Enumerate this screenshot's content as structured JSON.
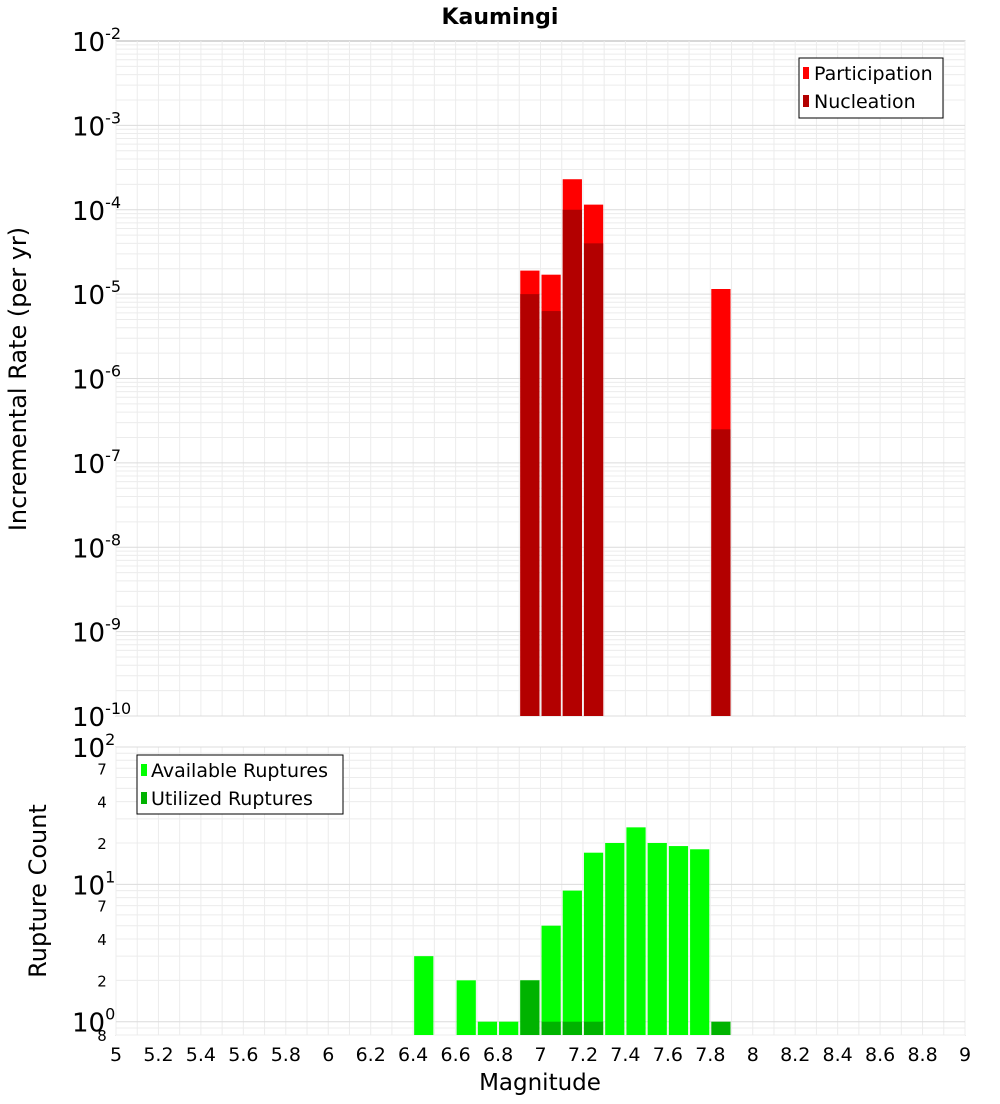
{
  "chart_data": [
    {
      "type": "bar",
      "title": "Kaumingi",
      "ylabel": "Incremental Rate (per yr)",
      "yscale": "log",
      "ylim": [
        1e-10,
        0.01
      ],
      "xlim": [
        5,
        9
      ],
      "bin_width": 0.1,
      "grid": true,
      "legend_position": "top-right",
      "series": [
        {
          "name": "Participation",
          "color": "#ff0000",
          "x": [
            6.95,
            7.05,
            7.15,
            7.25,
            7.85
          ],
          "values": [
            1.9e-05,
            1.7e-05,
            0.00023,
            0.000115,
            1.15e-05
          ]
        },
        {
          "name": "Nucleation",
          "color": "#b30000",
          "x": [
            6.95,
            7.05,
            7.15,
            7.25,
            7.85
          ],
          "values": [
            1e-05,
            6.3e-06,
            0.0001,
            4e-05,
            2.5e-07
          ]
        }
      ],
      "y_tick_labels": [
        {
          "base": "10",
          "exp": "-10"
        },
        {
          "base": "10",
          "exp": "-9"
        },
        {
          "base": "10",
          "exp": "-8"
        },
        {
          "base": "10",
          "exp": "-7"
        },
        {
          "base": "10",
          "exp": "-6"
        },
        {
          "base": "10",
          "exp": "-5"
        },
        {
          "base": "10",
          "exp": "-4"
        },
        {
          "base": "10",
          "exp": "-3"
        },
        {
          "base": "10",
          "exp": "-2"
        }
      ]
    },
    {
      "type": "bar",
      "xlabel": "Magnitude",
      "ylabel": "Rupture Count",
      "yscale": "log",
      "ylim": [
        0.8,
        100
      ],
      "xlim": [
        5,
        9
      ],
      "bin_width": 0.1,
      "grid": true,
      "legend_position": "top-left",
      "x_ticks": [
        "5",
        "5.2",
        "5.4",
        "5.6",
        "5.8",
        "6",
        "6.2",
        "6.4",
        "6.6",
        "6.8",
        "7",
        "7.2",
        "7.4",
        "7.6",
        "7.8",
        "8",
        "8.2",
        "8.4",
        "8.6",
        "8.8",
        "9"
      ],
      "series": [
        {
          "name": "Available Ruptures",
          "color": "#00ff00",
          "x": [
            6.45,
            6.65,
            6.75,
            6.85,
            6.95,
            7.05,
            7.15,
            7.25,
            7.35,
            7.45,
            7.55,
            7.65,
            7.75
          ],
          "values": [
            3,
            2,
            1,
            1,
            2,
            5,
            9,
            17,
            20,
            26,
            20,
            19,
            18
          ]
        },
        {
          "name": "Utilized Ruptures",
          "color": "#00b300",
          "x": [
            6.95,
            7.05,
            7.15,
            7.25,
            7.85
          ],
          "values": [
            2,
            1,
            1,
            1,
            1
          ]
        }
      ],
      "y_tick_labels": {
        "major": [
          {
            "value": 1,
            "base": "10",
            "exp": "0"
          },
          {
            "value": 10,
            "base": "10",
            "exp": "1"
          },
          {
            "value": 100,
            "base": "10",
            "exp": "2"
          }
        ],
        "minor": [
          {
            "value": 0.8,
            "label": "8"
          },
          {
            "value": 2,
            "label": "2"
          },
          {
            "value": 4,
            "label": "4"
          },
          {
            "value": 7,
            "label": "7"
          },
          {
            "value": 20,
            "label": "2"
          },
          {
            "value": 40,
            "label": "4"
          },
          {
            "value": 70,
            "label": "7"
          }
        ]
      }
    }
  ]
}
